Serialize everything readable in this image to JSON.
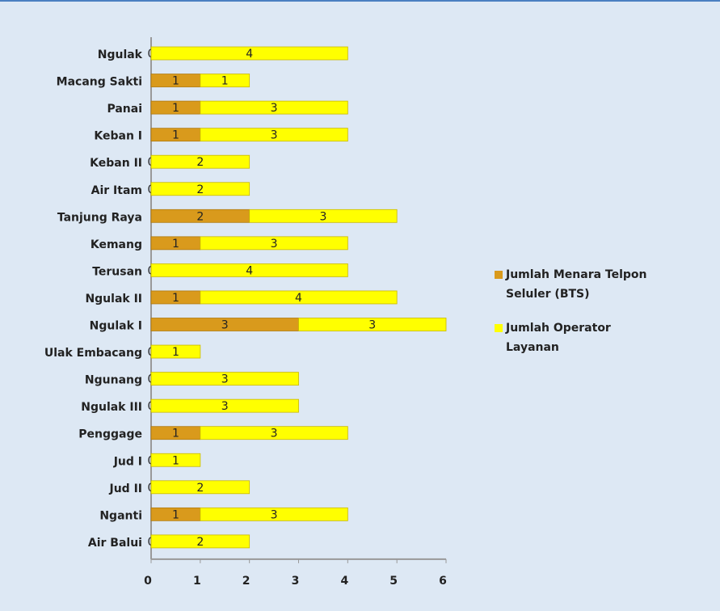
{
  "chart_data": {
    "type": "stacked-barh",
    "categories": [
      "Ngulak",
      "Macang Sakti",
      "Panai",
      "Keban I",
      "Keban II",
      "Air Itam",
      "Tanjung Raya",
      "Kemang",
      "Terusan",
      "Ngulak II",
      "Ngulak I",
      "Ulak Embacang",
      "Ngunang",
      "Ngulak III",
      "Penggage",
      "Jud I",
      "Jud II",
      "Nganti",
      "Air Balui"
    ],
    "series": [
      {
        "name": "Jumlah Menara Telpon Seluler (BTS)",
        "color": "#d99a1c",
        "values": [
          0,
          1,
          1,
          1,
          0,
          0,
          2,
          1,
          0,
          1,
          3,
          0,
          0,
          0,
          1,
          0,
          0,
          1,
          0
        ]
      },
      {
        "name": "Jumlah Operator Layanan",
        "color": "#ffff00",
        "values": [
          4,
          1,
          3,
          3,
          2,
          2,
          3,
          3,
          4,
          4,
          3,
          1,
          3,
          3,
          3,
          1,
          2,
          3,
          2
        ]
      }
    ],
    "xlim": [
      0,
      6
    ],
    "xticks": [
      0,
      1,
      2,
      3,
      4,
      5,
      6
    ],
    "legend": "right",
    "data_labels": true
  }
}
